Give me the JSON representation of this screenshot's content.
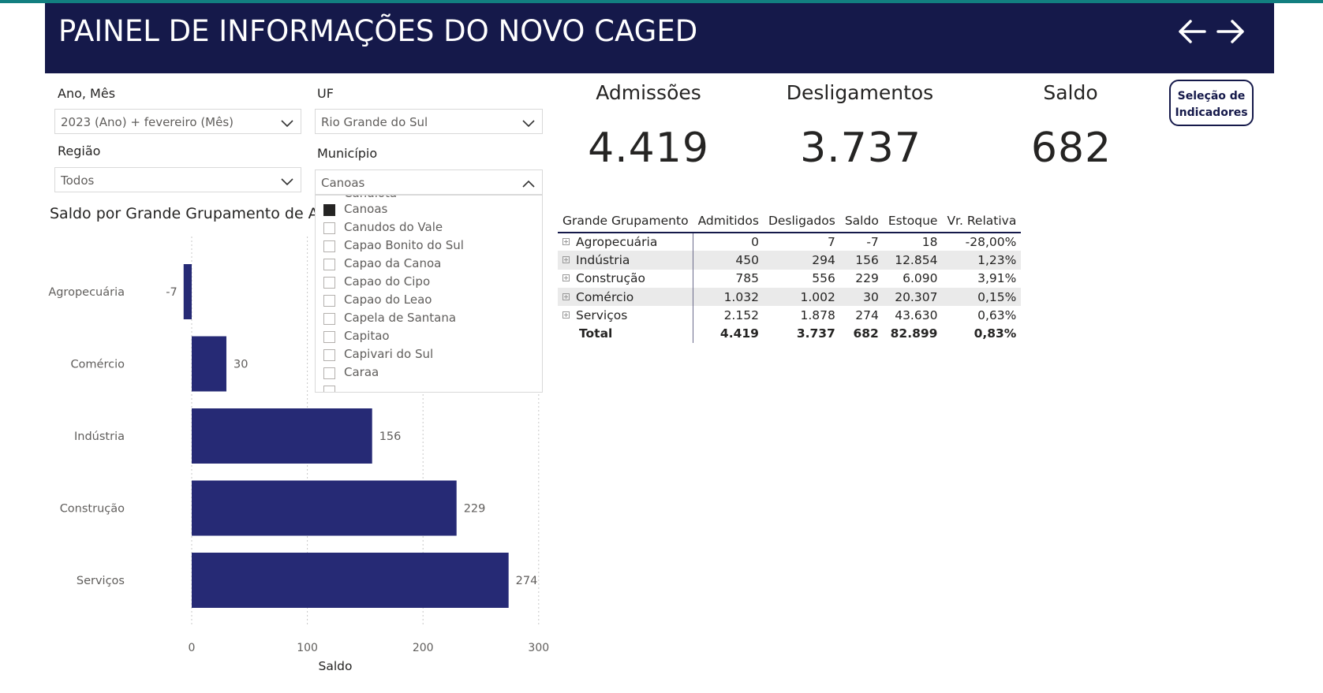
{
  "header": {
    "title": "PAINEL DE INFORMAÇÕES DO NOVO CAGED",
    "back_icon": "arrow-left-icon",
    "forward_icon": "arrow-right-icon",
    "background": "#15194a"
  },
  "filters": {
    "ano_mes": {
      "label": "Ano, Mês",
      "value": "2023 (Ano) + fevereiro (Mês)"
    },
    "uf": {
      "label": "UF",
      "value": "Rio Grande do Sul"
    },
    "regiao": {
      "label": "Região",
      "value": "Todos"
    },
    "municipio": {
      "label": "Município",
      "value": "Canoas",
      "options": [
        {
          "label": "Canoas",
          "checked": true
        },
        {
          "label": "Canudos do Vale",
          "checked": false
        },
        {
          "label": "Capao Bonito do Sul",
          "checked": false
        },
        {
          "label": "Capao da Canoa",
          "checked": false
        },
        {
          "label": "Capao do Cipo",
          "checked": false
        },
        {
          "label": "Capao do Leao",
          "checked": false
        },
        {
          "label": "Capela de Santana",
          "checked": false
        },
        {
          "label": "Capitao",
          "checked": false
        },
        {
          "label": "Capivari do Sul",
          "checked": false
        },
        {
          "label": "Caraa",
          "checked": false
        }
      ]
    }
  },
  "kpis": {
    "admissoes": {
      "label": "Admissões",
      "value": "4.419"
    },
    "desligamentos": {
      "label": "Desligamentos",
      "value": "3.737"
    },
    "saldo": {
      "label": "Saldo",
      "value": "682"
    }
  },
  "selection_button": {
    "line1": "Seleção de",
    "line2": "Indicadores"
  },
  "chart": {
    "title": "Saldo por Grande Grupamento de Ati",
    "bar_color": "#262a75"
  },
  "chart_data": {
    "type": "bar",
    "orientation": "horizontal",
    "categories": [
      "Agropecuária",
      "Comércio",
      "Indústria",
      "Construção",
      "Serviços"
    ],
    "values": [
      -7,
      30,
      156,
      229,
      274
    ],
    "data_labels": [
      "-7",
      "30",
      "156",
      "229",
      "274"
    ],
    "xlabel": "Saldo",
    "ylabel": "",
    "xlim": [
      -7,
      300
    ],
    "xticks": [
      0,
      100,
      200,
      300
    ],
    "grid": true
  },
  "table": {
    "headers": [
      "Grande Grupamento",
      "Admitidos",
      "Desligados",
      "Saldo",
      "Estoque",
      "Vr. Relativa"
    ],
    "rows": [
      [
        "Agropecuária",
        "0",
        "7",
        "-7",
        "18",
        "-28,00%"
      ],
      [
        "Indústria",
        "450",
        "294",
        "156",
        "12.854",
        "1,23%"
      ],
      [
        "Construção",
        "785",
        "556",
        "229",
        "6.090",
        "3,91%"
      ],
      [
        "Comércio",
        "1.032",
        "1.002",
        "30",
        "20.307",
        "0,15%"
      ],
      [
        "Serviços",
        "2.152",
        "1.878",
        "274",
        "43.630",
        "0,63%"
      ]
    ],
    "total": [
      "Total",
      "4.419",
      "3.737",
      "682",
      "82.899",
      "0,83%"
    ]
  }
}
